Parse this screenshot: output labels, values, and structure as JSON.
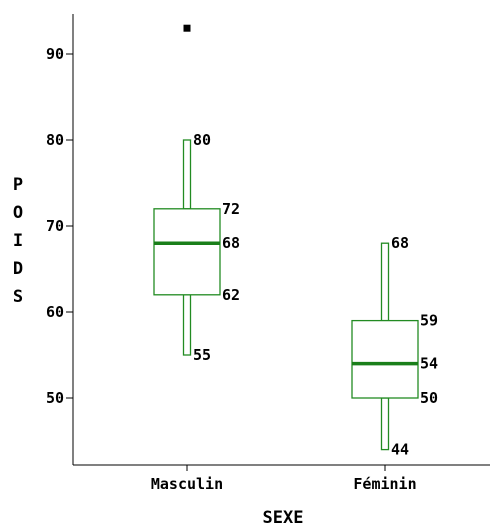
{
  "chart_data": {
    "type": "boxplot",
    "xlabel": "SEXE",
    "ylabel": "POIDS",
    "ylim": [
      42,
      95
    ],
    "yticks": [
      "50",
      "60",
      "70",
      "80",
      "90"
    ],
    "categories": [
      "Masculin",
      "Féminin"
    ],
    "boxes": [
      {
        "category": "Masculin",
        "whisker_low": 55,
        "q1": 62,
        "median": 68,
        "q3": 72,
        "whisker_high": 80,
        "outliers": [
          93
        ],
        "labels": {
          "whisker_high": "80",
          "q3": "72",
          "median": "68",
          "q1": "62",
          "whisker_low": "55"
        }
      },
      {
        "category": "Féminin",
        "whisker_low": 44,
        "q1": 50,
        "median": 54,
        "q3": 59,
        "whisker_high": 68,
        "outliers": [],
        "labels": {
          "whisker_high": "68",
          "q3": "59",
          "median": "54",
          "q1": "50",
          "whisker_low": "44"
        }
      }
    ],
    "colors": {
      "box": "#228B22",
      "median": "#1a7f1a",
      "outlier": "#000000",
      "axis": "#000000"
    },
    "grid": false
  }
}
